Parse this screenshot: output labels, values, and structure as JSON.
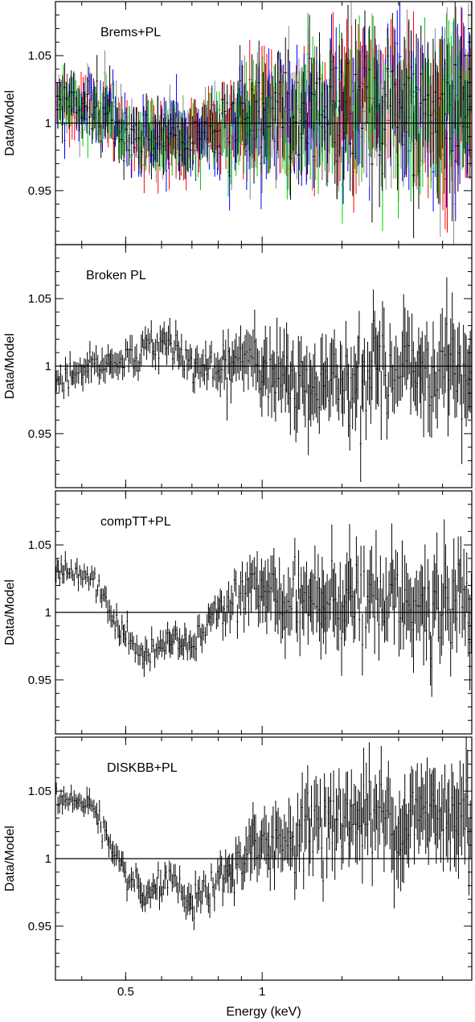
{
  "chart_data": {
    "type": "scatter",
    "xlabel": "Energy (keV)",
    "x_scale": "log",
    "xlim": [
      0.35,
      2.9
    ],
    "x_ticks": [
      {
        "value": 0.5,
        "label": "0.5"
      },
      {
        "value": 1,
        "label": "1"
      }
    ],
    "ylabel": "Data/Model",
    "reference_line": 1,
    "panels": [
      {
        "title": "Brems+PL",
        "ylim": [
          0.91,
          1.09
        ],
        "y_ticks": [
          {
            "value": 0.95,
            "label": "0.95"
          },
          {
            "value": 1,
            "label": "1"
          },
          {
            "value": 1.05,
            "label": "1.05"
          }
        ],
        "series_colors": [
          "#ff0000",
          "#0000ff",
          "#00cc00",
          "#888888",
          "#000000"
        ],
        "trend": {
          "e": [
            0.35,
            0.45,
            0.52,
            0.6,
            0.75,
            0.9,
            1.1,
            1.5,
            2.9
          ],
          "r": [
            1.018,
            1.008,
            0.99,
            0.985,
            0.99,
            1.0,
            1.005,
            1.01,
            1.01
          ]
        },
        "noise": {
          "e": [
            0.35,
            0.8,
            1.0,
            2.9
          ],
          "s": [
            0.015,
            0.02,
            0.03,
            0.045
          ]
        }
      },
      {
        "title": "Broken PL",
        "ylim": [
          0.91,
          1.09
        ],
        "y_ticks": [
          {
            "value": 0.95,
            "label": "0.95"
          },
          {
            "value": 1,
            "label": "1"
          },
          {
            "value": 1.05,
            "label": "1.05"
          }
        ],
        "series_colors": [
          "#000000"
        ],
        "trend": {
          "e": [
            0.35,
            0.42,
            0.5,
            0.58,
            0.62,
            0.7,
            0.8,
            0.95,
            1.1,
            1.5,
            2.9
          ],
          "r": [
            0.99,
            1.0,
            1.005,
            1.015,
            1.02,
            1.0,
            0.995,
            1.01,
            0.985,
            0.995,
            1.0
          ]
        },
        "noise": {
          "e": [
            0.35,
            0.8,
            1.0,
            2.9
          ],
          "s": [
            0.008,
            0.012,
            0.022,
            0.03
          ]
        }
      },
      {
        "title": "compTT+PL",
        "ylim": [
          0.91,
          1.09
        ],
        "y_ticks": [
          {
            "value": 0.95,
            "label": "0.95"
          },
          {
            "value": 1,
            "label": "1"
          },
          {
            "value": 1.05,
            "label": "1.05"
          }
        ],
        "series_colors": [
          "#000000"
        ],
        "trend": {
          "e": [
            0.35,
            0.42,
            0.48,
            0.55,
            0.62,
            0.7,
            0.8,
            0.95,
            1.1,
            1.5,
            2.9
          ],
          "r": [
            1.03,
            1.025,
            0.99,
            0.965,
            0.98,
            0.975,
            1.005,
            1.02,
            1.005,
            1.01,
            1.005
          ]
        },
        "noise": {
          "e": [
            0.35,
            0.8,
            1.0,
            2.9
          ],
          "s": [
            0.006,
            0.01,
            0.02,
            0.03
          ]
        }
      },
      {
        "title": "DISKBB+PL",
        "ylim": [
          0.91,
          1.09
        ],
        "y_ticks": [
          {
            "value": 0.95,
            "label": "0.95"
          },
          {
            "value": 1,
            "label": "1"
          },
          {
            "value": 1.05,
            "label": "1.05"
          }
        ],
        "series_colors": [
          "#000000"
        ],
        "trend": {
          "e": [
            0.35,
            0.42,
            0.48,
            0.55,
            0.62,
            0.7,
            0.8,
            0.95,
            1.1,
            1.5,
            2.9
          ],
          "r": [
            1.045,
            1.04,
            0.995,
            0.97,
            0.985,
            0.965,
            0.985,
            1.005,
            1.015,
            1.03,
            1.03
          ]
        },
        "noise": {
          "e": [
            0.35,
            0.8,
            1.0,
            2.9
          ],
          "s": [
            0.006,
            0.01,
            0.02,
            0.03
          ]
        }
      }
    ]
  }
}
